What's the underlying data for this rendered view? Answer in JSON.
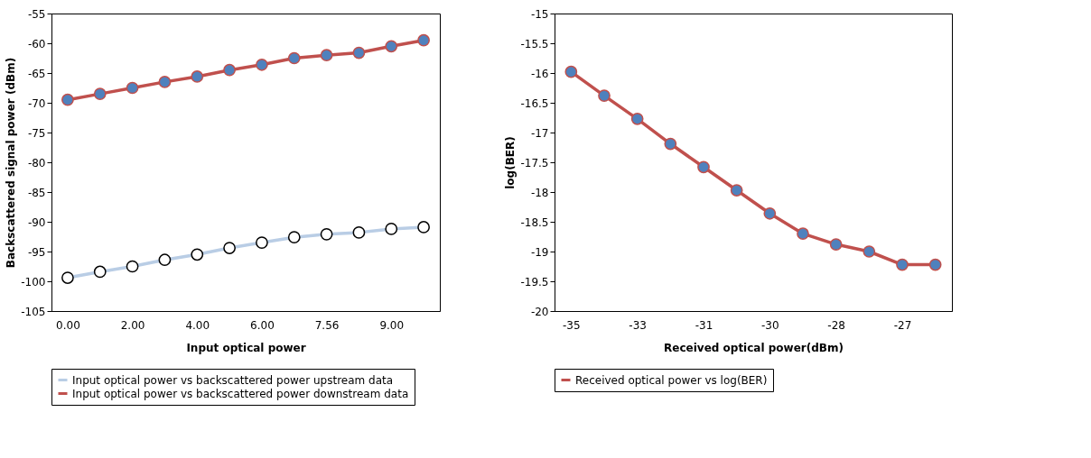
{
  "chart_data": [
    {
      "type": "line",
      "xlabel": "Input optical power",
      "ylabel": "Backscattered signal power (dBm)",
      "categories": [
        "0.00",
        null,
        "2.00",
        null,
        "4.00",
        null,
        "6.00",
        null,
        "7.56",
        null,
        "9.00",
        null
      ],
      "ylim": [
        -105,
        -55
      ],
      "yticks": [
        -105,
        -100,
        -95,
        -90,
        -85,
        -80,
        -75,
        -70,
        -65,
        -60,
        -55
      ],
      "grid": false,
      "legend": "bottom",
      "marker": "circle",
      "line_style": "solid",
      "series": [
        {
          "name": "Input optical power vs backscattered power upstream data",
          "color": "#b9cde5",
          "values": [
            -99.4,
            -98.4,
            -97.5,
            -96.4,
            -95.5,
            -94.4,
            -93.5,
            -92.6,
            -92.1,
            -91.8,
            -91.2,
            -90.9
          ]
        },
        {
          "name": "Input optical power vs backscattered power downstream data",
          "color": "#c0504d",
          "values": [
            -69.5,
            -68.5,
            -67.5,
            -66.5,
            -65.6,
            -64.5,
            -63.6,
            -62.5,
            -62.0,
            -61.6,
            -60.5,
            -59.5
          ]
        }
      ]
    },
    {
      "type": "line",
      "xlabel": "Received optical power(dBm)",
      "ylabel": "log(BER)",
      "categories": [
        "-35",
        null,
        "-33",
        null,
        "-31",
        null,
        "-30",
        null,
        "-28",
        null,
        "-27",
        null
      ],
      "ylim": [
        -20,
        -15
      ],
      "yticks": [
        -20,
        -19.5,
        -19,
        -18.5,
        -18,
        -17.5,
        -17,
        -16.5,
        -16,
        -15.5,
        -15
      ],
      "grid": false,
      "legend": "bottom",
      "marker": "circle",
      "line_style": "solid",
      "series": [
        {
          "name": "Received optical power vs log(BER)",
          "color": "#c0504d",
          "values": [
            -15.98,
            -16.38,
            -16.77,
            -17.19,
            -17.58,
            -17.97,
            -18.36,
            -18.7,
            -18.88,
            -19.0,
            -19.22,
            -19.22
          ]
        }
      ]
    }
  ]
}
